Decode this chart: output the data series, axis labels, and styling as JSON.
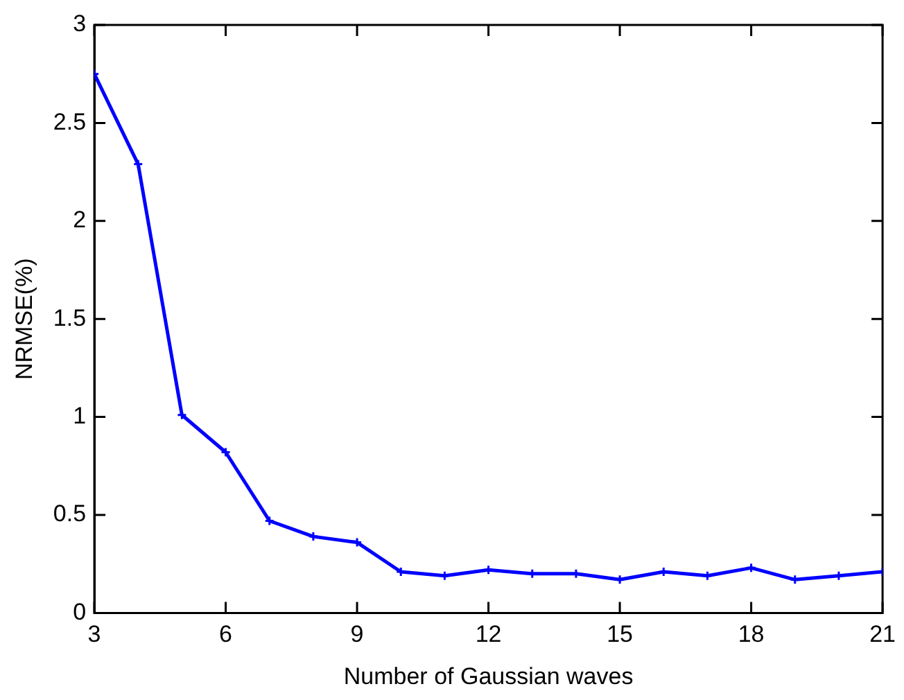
{
  "chart_data": {
    "type": "line",
    "xlabel": "Number of Gaussian waves",
    "ylabel": "NRMSE(%)",
    "x": [
      3,
      4,
      5,
      6,
      7,
      8,
      9,
      10,
      11,
      12,
      13,
      14,
      15,
      16,
      17,
      18,
      19,
      20,
      21
    ],
    "series": [
      {
        "color": "#0000ff",
        "values": [
          2.75,
          2.29,
          1.01,
          0.82,
          0.47,
          0.39,
          0.36,
          0.21,
          0.19,
          0.22,
          0.2,
          0.2,
          0.17,
          0.21,
          0.19,
          0.23,
          0.17,
          0.19,
          0.21
        ]
      }
    ],
    "xlim": [
      3,
      21
    ],
    "xticks": [
      3,
      6,
      9,
      12,
      15,
      18,
      21
    ],
    "ylim": [
      0,
      3
    ],
    "yticks": [
      0,
      0.5,
      1,
      1.5,
      2,
      2.5,
      3
    ],
    "grid": false,
    "legend": false,
    "marker": "cross",
    "line_style": "solid"
  }
}
